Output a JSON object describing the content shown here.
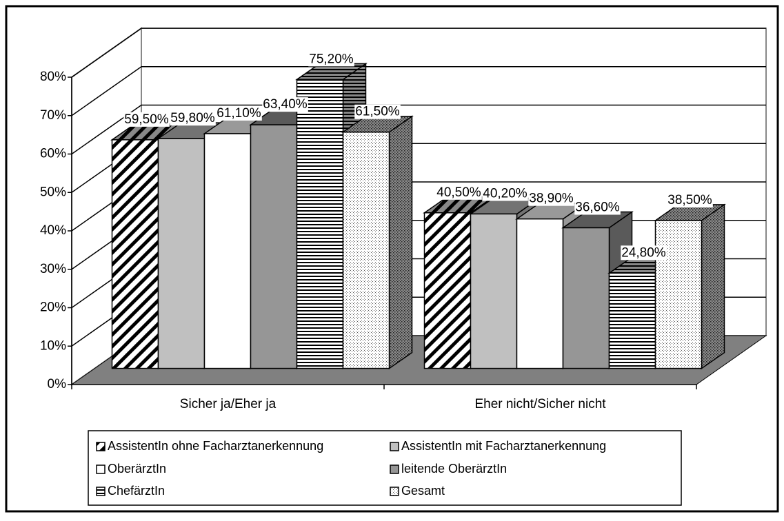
{
  "chart_data": {
    "type": "bar3d",
    "categories": [
      "Sicher ja/Eher ja",
      "Eher nicht/Sicher nicht"
    ],
    "series": [
      {
        "name": "AssistentIn ohne Facharztanerkennung",
        "color": "#ffffff",
        "pattern": "diagonal",
        "values": [
          59.5,
          40.5
        ],
        "value_labels": [
          "59,50%",
          "40,50%"
        ]
      },
      {
        "name": "AssistentIn mit Facharztanerkennung",
        "color": "#c0c0c0",
        "pattern": "none",
        "values": [
          59.8,
          40.2
        ],
        "value_labels": [
          "59,80%",
          "40,20%"
        ]
      },
      {
        "name": "OberärztIn",
        "color": "#ffffff",
        "pattern": "none",
        "values": [
          61.1,
          38.9
        ],
        "value_labels": [
          "61,10%",
          "38,90%"
        ]
      },
      {
        "name": "leitende OberärztIn",
        "color": "#969696",
        "pattern": "none",
        "values": [
          63.4,
          36.6
        ],
        "value_labels": [
          "63,40%",
          "36,60%"
        ]
      },
      {
        "name": "ChefärztIn",
        "color": "#ffffff",
        "pattern": "horizontal",
        "values": [
          75.2,
          24.8
        ],
        "value_labels": [
          "75,20%",
          "24,80%"
        ]
      },
      {
        "name": "Gesamt",
        "color": "#ffffff",
        "pattern": "dots",
        "values": [
          61.5,
          38.5
        ],
        "value_labels": [
          "61,50%",
          "38,50%"
        ]
      }
    ],
    "ylim": [
      0,
      80
    ],
    "yticks": [
      {
        "value": 0,
        "label": "0%"
      },
      {
        "value": 10,
        "label": "10%"
      },
      {
        "value": 20,
        "label": "20%"
      },
      {
        "value": 30,
        "label": "30%"
      },
      {
        "value": 40,
        "label": "40%"
      },
      {
        "value": 50,
        "label": "50%"
      },
      {
        "value": 60,
        "label": "60%"
      },
      {
        "value": 70,
        "label": "70%"
      },
      {
        "value": 80,
        "label": "80%"
      }
    ],
    "grid": true,
    "legend": "bottom"
  }
}
